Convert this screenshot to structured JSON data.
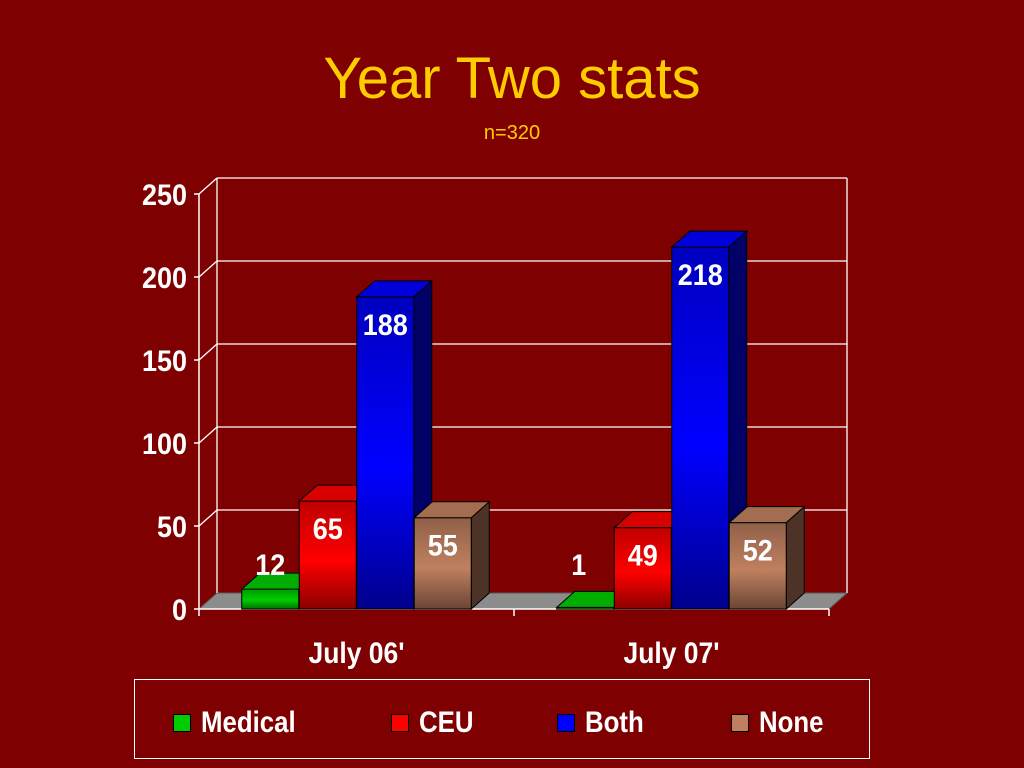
{
  "slide": {
    "title": "Year Two stats",
    "subtitle": "n=320"
  },
  "colors": {
    "background": "#7f0000",
    "title": "#ffcc00",
    "text": "#ffffff",
    "Medical": "#00cc00",
    "CEU": "#ff0000",
    "Both": "#0000ff",
    "None": "#c08060"
  },
  "chart_data": {
    "type": "bar",
    "style": "3d-clustered",
    "categories": [
      "July 06'",
      "July 07'"
    ],
    "series": [
      {
        "name": "Medical",
        "values": [
          12,
          1
        ]
      },
      {
        "name": "CEU",
        "values": [
          65,
          49
        ]
      },
      {
        "name": "Both",
        "values": [
          188,
          218
        ]
      },
      {
        "name": "None",
        "values": [
          55,
          52
        ]
      }
    ],
    "data_labels": true,
    "ylim": [
      0,
      250
    ],
    "yticks": [
      "0",
      "50",
      "100",
      "150",
      "200",
      "250"
    ],
    "grid": true,
    "legend_position": "bottom"
  }
}
